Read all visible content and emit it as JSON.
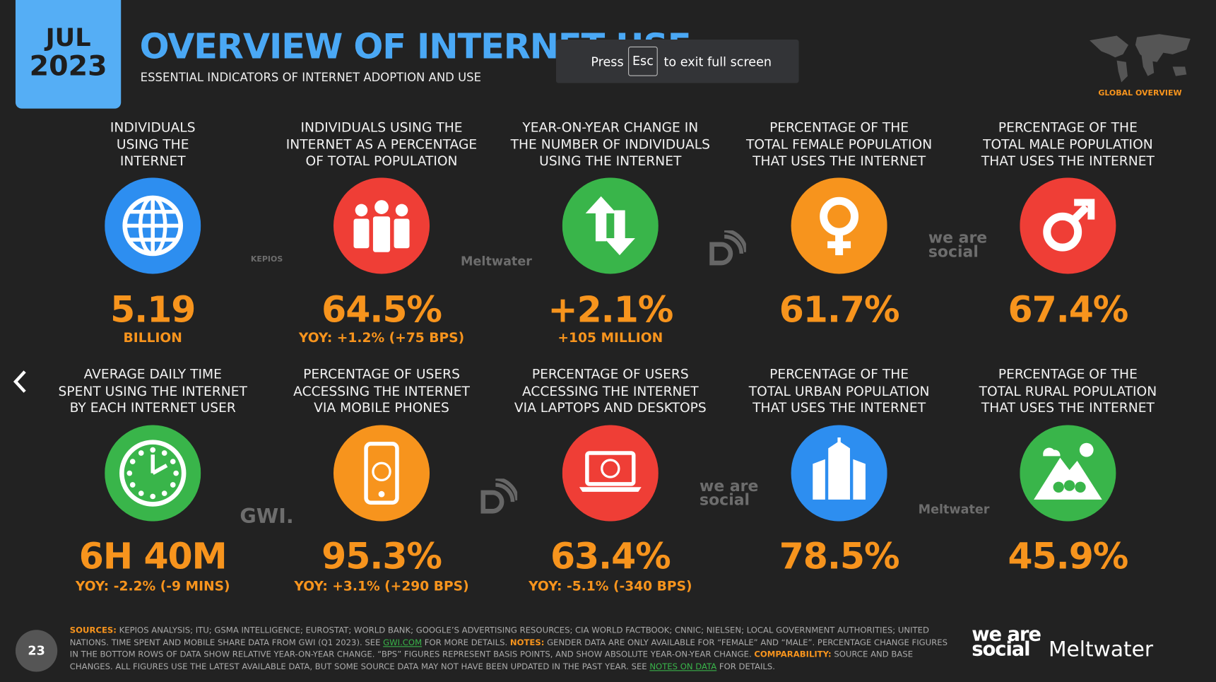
{
  "header": {
    "month": "JUL",
    "year": "2023",
    "title": "OVERVIEW OF INTERNET USE",
    "subtitle": "ESSENTIAL INDICATORS OF INTERNET ADOPTION AND USE",
    "section": "GLOBAL OVERVIEW"
  },
  "overlay": {
    "press": "Press",
    "key": "Esc",
    "rest": "to exit full screen"
  },
  "cards": [
    {
      "label_lines": [
        "INDIVIDUALS",
        "USING THE",
        "INTERNET"
      ],
      "value": "5.19",
      "sub": "BILLION"
    },
    {
      "label_lines": [
        "INDIVIDUALS USING THE",
        "INTERNET AS A PERCENTAGE",
        "OF TOTAL POPULATION"
      ],
      "value": "64.5%",
      "sub": "YOY: +1.2% (+75 BPS)"
    },
    {
      "label_lines": [
        "YEAR-ON-YEAR CHANGE IN",
        "THE NUMBER OF INDIVIDUALS",
        "USING THE INTERNET"
      ],
      "value": "+2.1%",
      "sub": "+105 MILLION"
    },
    {
      "label_lines": [
        "PERCENTAGE OF THE",
        "TOTAL FEMALE POPULATION",
        "THAT USES THE INTERNET"
      ],
      "value": "61.7%"
    },
    {
      "label_lines": [
        "PERCENTAGE OF THE",
        "TOTAL MALE POPULATION",
        "THAT USES THE INTERNET"
      ],
      "value": "67.4%"
    },
    {
      "label_lines": [
        "AVERAGE DAILY TIME",
        "SPENT USING THE INTERNET",
        "BY EACH INTERNET USER"
      ],
      "value": "6H 40M",
      "sub": "YOY: -2.2% (-9 MINS)"
    },
    {
      "label_lines": [
        "PERCENTAGE OF USERS",
        "ACCESSING THE INTERNET",
        "VIA MOBILE PHONES"
      ],
      "value": "95.3%",
      "sub": "YOY: +3.1% (+290 BPS)"
    },
    {
      "label_lines": [
        "PERCENTAGE OF USERS",
        "ACCESSING THE INTERNET",
        "VIA LAPTOPS AND DESKTOPS"
      ],
      "value": "63.4%",
      "sub": "YOY: -5.1% (-340 BPS)"
    },
    {
      "label_lines": [
        "PERCENTAGE OF THE",
        "TOTAL URBAN POPULATION",
        "THAT USES THE INTERNET"
      ],
      "value": "78.5%"
    },
    {
      "label_lines": [
        "PERCENTAGE OF THE",
        "TOTAL RURAL POPULATION",
        "THAT USES THE INTERNET"
      ],
      "value": "45.9%"
    }
  ],
  "partner_logos": [
    "KEPIOS",
    "Meltwater",
    "we are social",
    "GWI.",
    "we are social",
    "Meltwater"
  ],
  "footer": {
    "segments": [
      "SOURCES:",
      " KEPIOS ANALYSIS; ITU; GSMA INTELLIGENCE; EUROSTAT; WORLD BANK; GOOGLE’S ADVERTISING RESOURCES; CIA WORLD FACTBOOK; CNNIC; NIELSEN; LOCAL GOVERNMENT AUTHORITIES; UNITED NATIONS. TIME SPENT AND MOBILE SHARE DATA FROM GWI (Q1 2023). SEE ",
      "GWI.COM",
      " FOR MORE DETAILS. ",
      "NOTES:",
      " GENDER DATA ARE ONLY AVAILABLE FOR “FEMALE” AND “MALE”. PERCENTAGE CHANGE FIGURES IN THE BOTTOM ROWS OF DATA SHOW RELATIVE YEAR-ON-YEAR CHANGE. “BPS” FIGURES REPRESENT BASIS POINTS, AND SHOW ABSOLUTE YEAR-ON-YEAR CHANGE. ",
      "COMPARABILITY:",
      " SOURCE AND BASE CHANGES. ALL FIGURES USE THE LATEST AVAILABLE DATA, BUT SOME SOURCE DATA MAY NOT HAVE BEEN UPDATED IN THE PAST YEAR. SEE ",
      "NOTES ON DATA",
      " FOR DETAILS."
    ],
    "page_number": "23",
    "brand_1": "we are social",
    "brand_2": "Meltwater"
  }
}
